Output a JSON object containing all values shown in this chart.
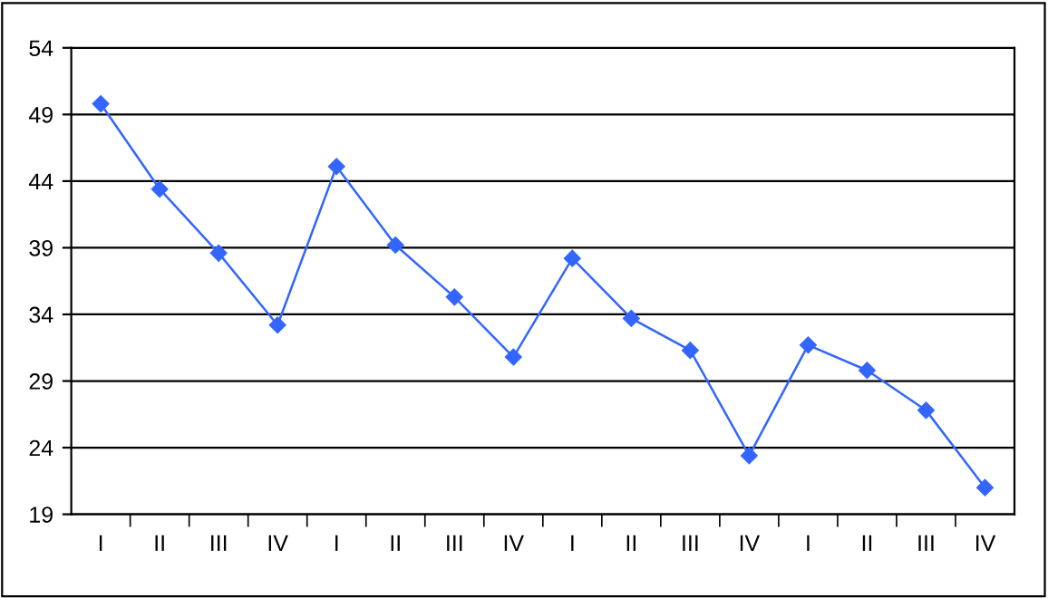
{
  "chart_data": {
    "type": "line",
    "categories": [
      "I",
      "II",
      "III",
      "IV",
      "I",
      "II",
      "III",
      "IV",
      "I",
      "II",
      "III",
      "IV",
      "I",
      "II",
      "III",
      "IV"
    ],
    "series": [
      {
        "color": "#3366ff",
        "values": [
          49.8,
          43.4,
          38.6,
          33.2,
          45.1,
          39.2,
          35.3,
          30.8,
          38.2,
          33.7,
          31.3,
          23.4,
          31.7,
          29.8,
          26.8,
          21.0
        ]
      }
    ],
    "ylim": [
      19,
      54
    ],
    "yticks": [
      19,
      24,
      29,
      34,
      39,
      44,
      49,
      54
    ],
    "grid": "y",
    "marker": "diamond",
    "line_style": "solid"
  }
}
